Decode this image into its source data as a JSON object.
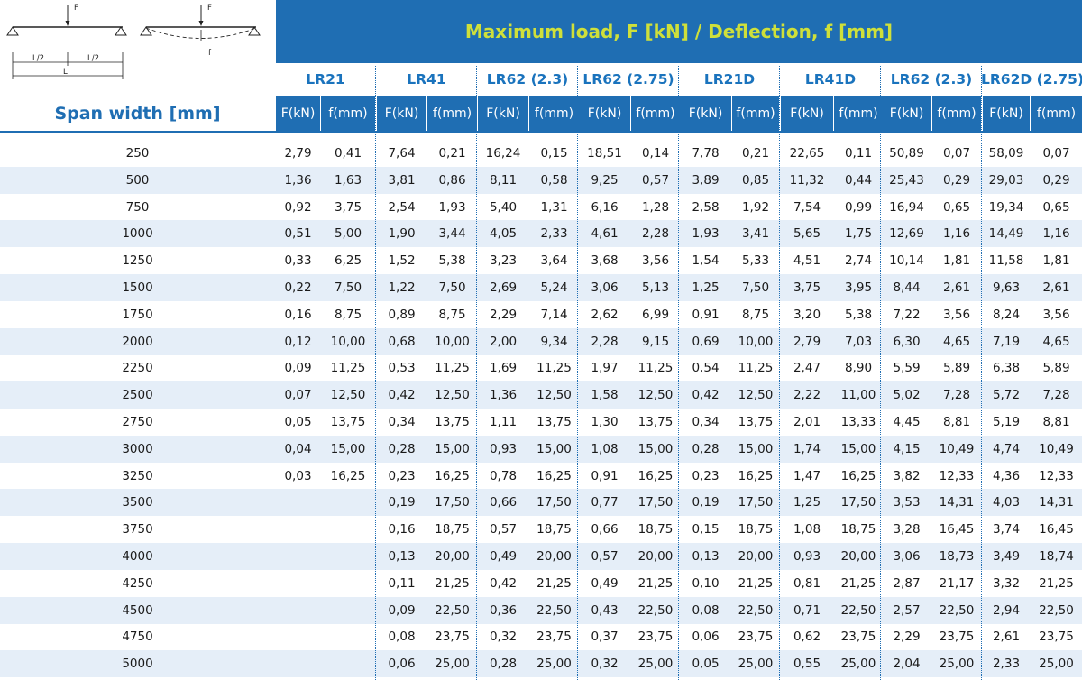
{
  "diagram": {
    "force_label": "F",
    "deflection_label": "f",
    "half_span_label": "L/2",
    "span_label": "L"
  },
  "header": {
    "title": "Maximum load, F [kN] / Deflection, f [mm]",
    "span_title": "Span width [mm]",
    "force_col": "F(kN)",
    "deflection_col": "f(mm)",
    "profiles": [
      "LR21",
      "LR41",
      "LR62 (2.3)",
      "LR62 (2.75)",
      "LR21D",
      "LR41D",
      "LR62 (2.3)",
      "LR62D (2.75)"
    ]
  },
  "table": {
    "rows": [
      [
        "250",
        "2,79",
        "0,41",
        "7,64",
        "0,21",
        "16,24",
        "0,15",
        "18,51",
        "0,14",
        "7,78",
        "0,21",
        "22,65",
        "0,11",
        "50,89",
        "0,07",
        "58,09",
        "0,07"
      ],
      [
        "500",
        "1,36",
        "1,63",
        "3,81",
        "0,86",
        "8,11",
        "0,58",
        "9,25",
        "0,57",
        "3,89",
        "0,85",
        "11,32",
        "0,44",
        "25,43",
        "0,29",
        "29,03",
        "0,29"
      ],
      [
        "750",
        "0,92",
        "3,75",
        "2,54",
        "1,93",
        "5,40",
        "1,31",
        "6,16",
        "1,28",
        "2,58",
        "1,92",
        "7,54",
        "0,99",
        "16,94",
        "0,65",
        "19,34",
        "0,65"
      ],
      [
        "1000",
        "0,51",
        "5,00",
        "1,90",
        "3,44",
        "4,05",
        "2,33",
        "4,61",
        "2,28",
        "1,93",
        "3,41",
        "5,65",
        "1,75",
        "12,69",
        "1,16",
        "14,49",
        "1,16"
      ],
      [
        "1250",
        "0,33",
        "6,25",
        "1,52",
        "5,38",
        "3,23",
        "3,64",
        "3,68",
        "3,56",
        "1,54",
        "5,33",
        "4,51",
        "2,74",
        "10,14",
        "1,81",
        "11,58",
        "1,81"
      ],
      [
        "1500",
        "0,22",
        "7,50",
        "1,22",
        "7,50",
        "2,69",
        "5,24",
        "3,06",
        "5,13",
        "1,25",
        "7,50",
        "3,75",
        "3,95",
        "8,44",
        "2,61",
        "9,63",
        "2,61"
      ],
      [
        "1750",
        "0,16",
        "8,75",
        "0,89",
        "8,75",
        "2,29",
        "7,14",
        "2,62",
        "6,99",
        "0,91",
        "8,75",
        "3,20",
        "5,38",
        "7,22",
        "3,56",
        "8,24",
        "3,56"
      ],
      [
        "2000",
        "0,12",
        "10,00",
        "0,68",
        "10,00",
        "2,00",
        "9,34",
        "2,28",
        "9,15",
        "0,69",
        "10,00",
        "2,79",
        "7,03",
        "6,30",
        "4,65",
        "7,19",
        "4,65"
      ],
      [
        "2250",
        "0,09",
        "11,25",
        "0,53",
        "11,25",
        "1,69",
        "11,25",
        "1,97",
        "11,25",
        "0,54",
        "11,25",
        "2,47",
        "8,90",
        "5,59",
        "5,89",
        "6,38",
        "5,89"
      ],
      [
        "2500",
        "0,07",
        "12,50",
        "0,42",
        "12,50",
        "1,36",
        "12,50",
        "1,58",
        "12,50",
        "0,42",
        "12,50",
        "2,22",
        "11,00",
        "5,02",
        "7,28",
        "5,72",
        "7,28"
      ],
      [
        "2750",
        "0,05",
        "13,75",
        "0,34",
        "13,75",
        "1,11",
        "13,75",
        "1,30",
        "13,75",
        "0,34",
        "13,75",
        "2,01",
        "13,33",
        "4,45",
        "8,81",
        "5,19",
        "8,81"
      ],
      [
        "3000",
        "0,04",
        "15,00",
        "0,28",
        "15,00",
        "0,93",
        "15,00",
        "1,08",
        "15,00",
        "0,28",
        "15,00",
        "1,74",
        "15,00",
        "4,15",
        "10,49",
        "4,74",
        "10,49"
      ],
      [
        "3250",
        "0,03",
        "16,25",
        "0,23",
        "16,25",
        "0,78",
        "16,25",
        "0,91",
        "16,25",
        "0,23",
        "16,25",
        "1,47",
        "16,25",
        "3,82",
        "12,33",
        "4,36",
        "12,33"
      ],
      [
        "3500",
        "",
        "",
        "0,19",
        "17,50",
        "0,66",
        "17,50",
        "0,77",
        "17,50",
        "0,19",
        "17,50",
        "1,25",
        "17,50",
        "3,53",
        "14,31",
        "4,03",
        "14,31"
      ],
      [
        "3750",
        "",
        "",
        "0,16",
        "18,75",
        "0,57",
        "18,75",
        "0,66",
        "18,75",
        "0,15",
        "18,75",
        "1,08",
        "18,75",
        "3,28",
        "16,45",
        "3,74",
        "16,45"
      ],
      [
        "4000",
        "",
        "",
        "0,13",
        "20,00",
        "0,49",
        "20,00",
        "0,57",
        "20,00",
        "0,13",
        "20,00",
        "0,93",
        "20,00",
        "3,06",
        "18,73",
        "3,49",
        "18,74"
      ],
      [
        "4250",
        "",
        "",
        "0,11",
        "21,25",
        "0,42",
        "21,25",
        "0,49",
        "21,25",
        "0,10",
        "21,25",
        "0,81",
        "21,25",
        "2,87",
        "21,17",
        "3,32",
        "21,25"
      ],
      [
        "4500",
        "",
        "",
        "0,09",
        "22,50",
        "0,36",
        "22,50",
        "0,43",
        "22,50",
        "0,08",
        "22,50",
        "0,71",
        "22,50",
        "2,57",
        "22,50",
        "2,94",
        "22,50"
      ],
      [
        "4750",
        "",
        "",
        "0,08",
        "23,75",
        "0,32",
        "23,75",
        "0,37",
        "23,75",
        "0,06",
        "23,75",
        "0,62",
        "23,75",
        "2,29",
        "23,75",
        "2,61",
        "23,75"
      ],
      [
        "5000",
        "",
        "",
        "0,06",
        "25,00",
        "0,28",
        "25,00",
        "0,32",
        "25,00",
        "0,05",
        "25,00",
        "0,55",
        "25,00",
        "2,04",
        "25,00",
        "2,33",
        "25,00"
      ]
    ]
  },
  "colors": {
    "primary": "#1f6eb3",
    "title_text": "#cfe03a",
    "group_text": "#1a73bd",
    "row_alt": "#e5eef8"
  }
}
